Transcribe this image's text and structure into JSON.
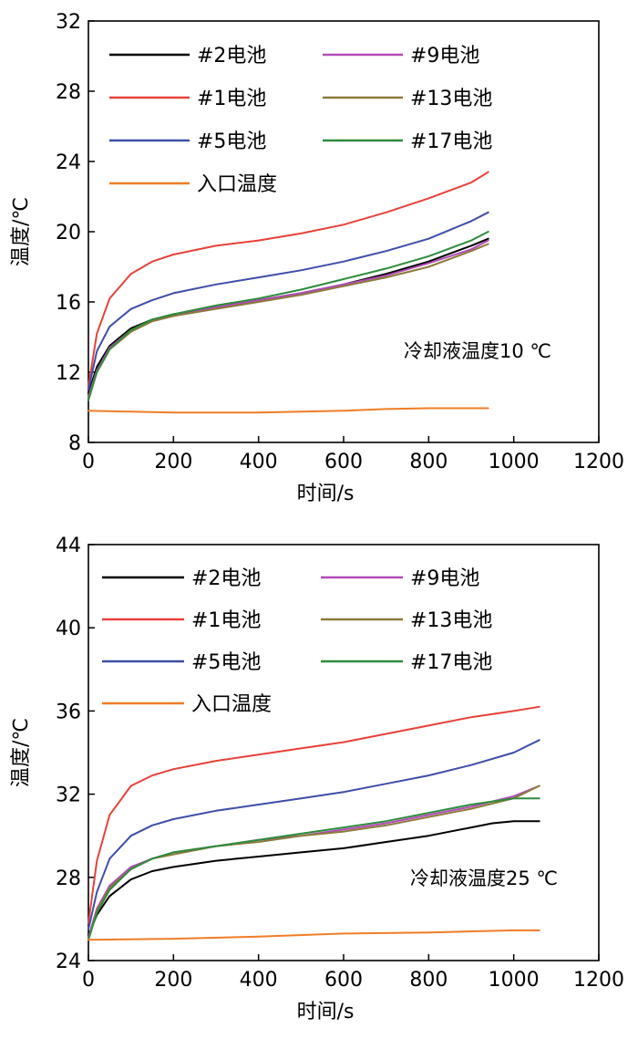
{
  "chart_data": [
    {
      "type": "line",
      "xlabel": "时间/s",
      "ylabel": "温度/℃",
      "xlim": [
        0,
        1200
      ],
      "ylim": [
        8,
        32
      ],
      "xticks": [
        0,
        200,
        400,
        600,
        800,
        1000,
        1200
      ],
      "yticks": [
        8,
        12,
        16,
        20,
        24,
        28,
        32
      ],
      "grid": false,
      "legend_position": "top-left, two columns",
      "annotation": "冷却液温度10 ℃",
      "series": [
        {
          "name": "#2电池",
          "color": "#000000",
          "x": [
            0,
            20,
            50,
            100,
            150,
            200,
            300,
            400,
            500,
            600,
            700,
            800,
            900,
            940
          ],
          "y": [
            10.8,
            12.3,
            13.5,
            14.5,
            15.0,
            15.3,
            15.7,
            16.1,
            16.5,
            17.0,
            17.6,
            18.3,
            19.2,
            19.6
          ]
        },
        {
          "name": "#1电池",
          "color": "#e8413a",
          "x": [
            0,
            20,
            50,
            100,
            150,
            200,
            300,
            400,
            500,
            600,
            700,
            800,
            900,
            940
          ],
          "y": [
            11.2,
            14.2,
            16.2,
            17.6,
            18.3,
            18.7,
            19.2,
            19.5,
            19.9,
            20.4,
            21.1,
            21.9,
            22.8,
            23.4
          ]
        },
        {
          "name": "#5电池",
          "color": "#3e4ea8",
          "x": [
            0,
            20,
            50,
            100,
            150,
            200,
            300,
            400,
            500,
            600,
            700,
            800,
            900,
            940
          ],
          "y": [
            11.0,
            13.2,
            14.6,
            15.6,
            16.1,
            16.5,
            17.0,
            17.4,
            17.8,
            18.3,
            18.9,
            19.6,
            20.6,
            21.1
          ]
        },
        {
          "name": "#9电池",
          "color": "#b24ab8",
          "x": [
            0,
            20,
            50,
            100,
            150,
            200,
            300,
            400,
            500,
            600,
            700,
            800,
            900,
            940
          ],
          "y": [
            10.6,
            12.1,
            13.4,
            14.4,
            14.9,
            15.2,
            15.7,
            16.1,
            16.5,
            17.0,
            17.5,
            18.2,
            19.0,
            19.5
          ]
        },
        {
          "name": "#13电池",
          "color": "#8c7a3a",
          "x": [
            0,
            20,
            50,
            100,
            150,
            200,
            300,
            400,
            500,
            600,
            700,
            800,
            900,
            940
          ],
          "y": [
            10.5,
            12.0,
            13.3,
            14.3,
            14.9,
            15.2,
            15.6,
            16.0,
            16.4,
            16.9,
            17.4,
            18.0,
            18.9,
            19.3
          ]
        },
        {
          "name": "#17电池",
          "color": "#2e8b3c",
          "x": [
            0,
            20,
            50,
            100,
            150,
            200,
            300,
            400,
            500,
            600,
            700,
            800,
            900,
            940
          ],
          "y": [
            10.4,
            12.0,
            13.3,
            14.4,
            15.0,
            15.3,
            15.8,
            16.2,
            16.7,
            17.3,
            17.9,
            18.6,
            19.5,
            20.0
          ]
        },
        {
          "name": "入口温度",
          "color": "#f07c28",
          "x": [
            0,
            100,
            200,
            300,
            400,
            500,
            600,
            700,
            800,
            900,
            940
          ],
          "y": [
            9.8,
            9.75,
            9.7,
            9.7,
            9.7,
            9.75,
            9.8,
            9.9,
            9.95,
            9.95,
            9.95
          ]
        }
      ]
    },
    {
      "type": "line",
      "xlabel": "时间/s",
      "ylabel": "温度/℃",
      "xlim": [
        0,
        1200
      ],
      "ylim": [
        24,
        44
      ],
      "xticks": [
        0,
        200,
        400,
        600,
        800,
        1000,
        1200
      ],
      "yticks": [
        24,
        28,
        32,
        36,
        40,
        44
      ],
      "grid": false,
      "legend_position": "top-left, two columns",
      "annotation": "冷却液温度25 ℃",
      "series": [
        {
          "name": "#2电池",
          "color": "#000000",
          "x": [
            0,
            20,
            50,
            100,
            150,
            200,
            300,
            400,
            500,
            600,
            700,
            800,
            900,
            950,
            1000,
            1060
          ],
          "y": [
            25.2,
            26.2,
            27.1,
            27.9,
            28.3,
            28.5,
            28.8,
            29.0,
            29.2,
            29.4,
            29.7,
            30.0,
            30.4,
            30.6,
            30.7,
            30.7
          ]
        },
        {
          "name": "#1电池",
          "color": "#e8413a",
          "x": [
            0,
            20,
            50,
            100,
            150,
            200,
            300,
            400,
            500,
            600,
            700,
            800,
            900,
            1000,
            1060
          ],
          "y": [
            25.8,
            28.8,
            31.0,
            32.4,
            32.9,
            33.2,
            33.6,
            33.9,
            34.2,
            34.5,
            34.9,
            35.3,
            35.7,
            36.0,
            36.2
          ]
        },
        {
          "name": "#5电池",
          "color": "#3e4ea8",
          "x": [
            0,
            20,
            50,
            100,
            150,
            200,
            300,
            400,
            500,
            600,
            700,
            800,
            900,
            1000,
            1060
          ],
          "y": [
            25.5,
            27.3,
            28.9,
            30.0,
            30.5,
            30.8,
            31.2,
            31.5,
            31.8,
            32.1,
            32.5,
            32.9,
            33.4,
            34.0,
            34.6
          ]
        },
        {
          "name": "#9电池",
          "color": "#b24ab8",
          "x": [
            0,
            20,
            50,
            100,
            150,
            200,
            300,
            400,
            500,
            600,
            700,
            800,
            900,
            1000,
            1060
          ],
          "y": [
            25.1,
            26.5,
            27.6,
            28.5,
            28.9,
            29.2,
            29.5,
            29.8,
            30.0,
            30.3,
            30.6,
            31.0,
            31.4,
            31.9,
            32.4
          ]
        },
        {
          "name": "#13电池",
          "color": "#8c7a3a",
          "x": [
            0,
            20,
            50,
            100,
            150,
            200,
            300,
            400,
            500,
            600,
            700,
            800,
            900,
            1000,
            1060
          ],
          "y": [
            25.0,
            26.4,
            27.5,
            28.4,
            28.9,
            29.1,
            29.5,
            29.7,
            30.0,
            30.2,
            30.5,
            30.9,
            31.3,
            31.8,
            32.4
          ]
        },
        {
          "name": "#17电池",
          "color": "#2e8b3c",
          "x": [
            0,
            20,
            50,
            100,
            150,
            200,
            300,
            400,
            500,
            600,
            700,
            800,
            900,
            1000,
            1060
          ],
          "y": [
            25.0,
            26.3,
            27.4,
            28.4,
            28.9,
            29.2,
            29.5,
            29.8,
            30.1,
            30.4,
            30.7,
            31.1,
            31.5,
            31.8,
            31.8
          ]
        },
        {
          "name": "入口温度",
          "color": "#f07c28",
          "x": [
            0,
            200,
            400,
            600,
            800,
            1000,
            1060
          ],
          "y": [
            25.0,
            25.05,
            25.15,
            25.3,
            25.35,
            25.45,
            25.45
          ]
        }
      ]
    }
  ]
}
